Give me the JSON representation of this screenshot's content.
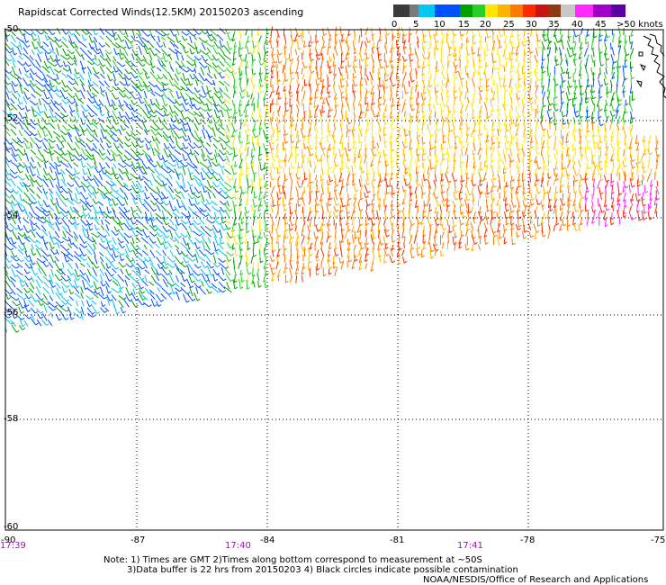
{
  "title": "Rapidscat Corrected Winds(12.5KM) 20150203 ascending",
  "legend": {
    "swatches": [
      "#3a3a3a",
      "#7a7a7a",
      "#00c8f0",
      "#0050ff",
      "#00a000",
      "#26d026",
      "#ffe600",
      "#ffb400",
      "#ff7800",
      "#ff2a00",
      "#c81414",
      "#8c3a14",
      "#c8c8c8",
      "#ff28ff",
      "#a000c8",
      "#5a00a0"
    ],
    "labels": [
      "0",
      "5",
      "10",
      "15",
      "20",
      "25",
      "30",
      "35",
      "40",
      "45",
      ">50 knots"
    ]
  },
  "axes": {
    "lon_labels": [
      "-90",
      "-87",
      "-84",
      "-81",
      "-78",
      "-75"
    ],
    "lat_labels": [
      "-50",
      "-52",
      "-54",
      "-56",
      "-58",
      "-60"
    ],
    "lon_range": [
      -90,
      -75
    ],
    "lat_range": [
      -60,
      -50
    ]
  },
  "time_labels": [
    "17:39",
    "17:40",
    "17:41"
  ],
  "notes": {
    "line1": "Note: 1) Times are GMT 2)Times along bottom correspond to measurement at ~50S",
    "line2": "3)Data buffer is 22 hrs from 20150203 4) Black circles indicate possible contamination",
    "line3": "NOAA/NESDIS/Office of Research and Applications"
  },
  "wind_field": {
    "regions": [
      {
        "area": "northwest",
        "speed_range_knots": [
          10,
          20
        ],
        "color": "#0050ff"
      },
      {
        "area": "west",
        "speed_range_knots": [
          5,
          15
        ],
        "color": "#00c8f0"
      },
      {
        "area": "central-north",
        "speed_range_knots": [
          30,
          40
        ],
        "color": "#ff7800"
      },
      {
        "area": "central",
        "speed_range_knots": [
          20,
          30
        ],
        "color": "#ffb400"
      },
      {
        "area": "east",
        "speed_range_knots": [
          20,
          35
        ],
        "color": "#ffe600"
      },
      {
        "area": "southeast",
        "speed_range_knots": [
          35,
          45
        ],
        "color": "#ff28ff"
      }
    ]
  }
}
